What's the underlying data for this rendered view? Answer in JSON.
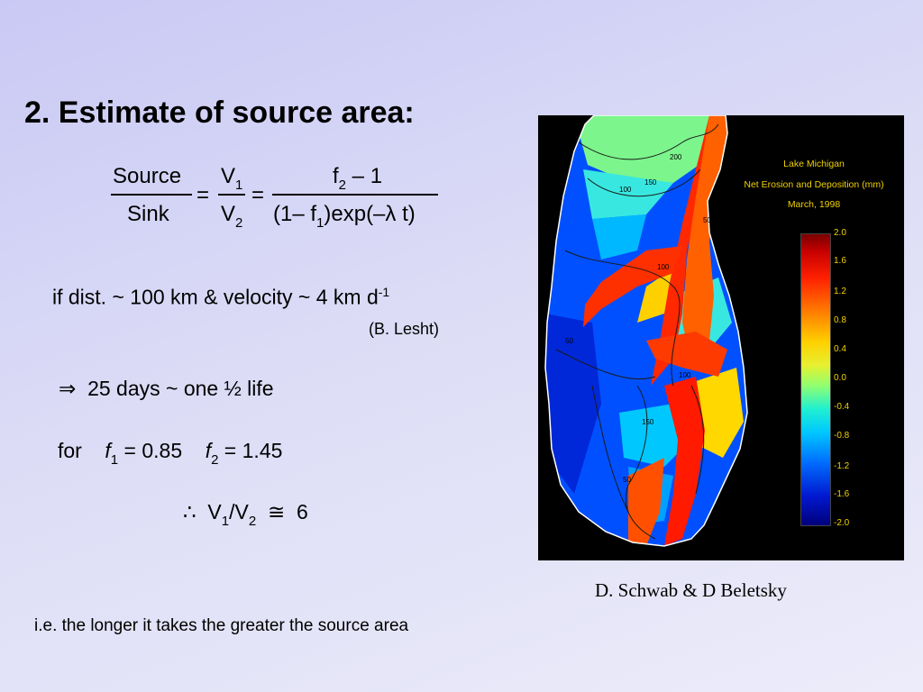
{
  "slide": {
    "title": "2.  Estimate of source area:",
    "equation": {
      "lhs_numerator": "Source",
      "lhs_denominator": "Sink",
      "equals": "=",
      "v_num": "V",
      "v_num_sub": "1",
      "v_den": "V",
      "v_den_sub": "2",
      "rhs_num_a": "f",
      "rhs_num_sub": "2",
      "rhs_num_b": " – 1",
      "rhs_den_a": "(1– f",
      "rhs_den_sub": "1",
      "rhs_den_b": ")exp(–λ  t)"
    },
    "condition_text": "if dist. ~ 100 km  &  velocity ~ 4 km d",
    "condition_sup": "-1",
    "citation": "(B. Lesht)",
    "implies_symbol": "⇒",
    "implies_text": "25 days ~ one ½ life",
    "for_label": "for",
    "f1_label": "f",
    "f1_sub": "1",
    "f1_value": " =  0.85",
    "f2_label": "f",
    "f2_sub": "2",
    "f2_value": " = 1.45",
    "therefore_symbol": "∴",
    "result_v1": "V",
    "result_v1_sub": "1",
    "result_slash": "/V",
    "result_v2_sub": "2",
    "result_approx": "≅",
    "result_value": "6",
    "credit": "D. Schwab & D Beletsky",
    "footer": "i.e. the longer it takes the greater the source area"
  },
  "map": {
    "title_line1": "Lake Michigan",
    "title_line2": "Net Erosion and Deposition (mm)",
    "title_line3": "March, 1998",
    "colorbar_ticks": [
      "2.0",
      "1.6",
      "1.2",
      "0.8",
      "0.4",
      "0.0",
      "-0.4",
      "-0.8",
      "-1.2",
      "-1.6",
      "-2.0"
    ],
    "contour_labels": [
      "200",
      "150",
      "100",
      "50",
      "100",
      "50",
      "100",
      "150",
      "50"
    ]
  }
}
